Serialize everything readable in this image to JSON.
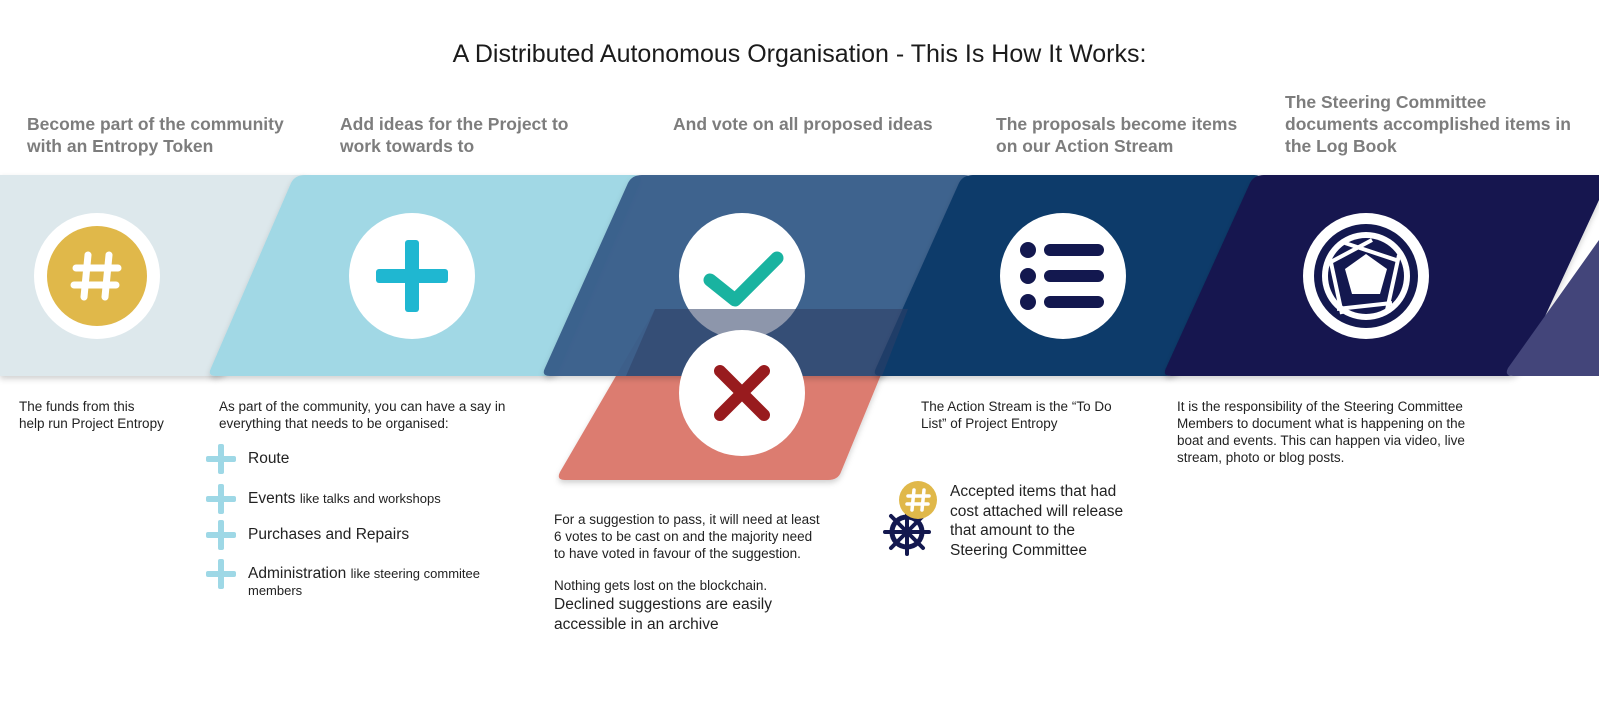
{
  "title": "A Distributed Autonomous Organisation - This Is How It Works:",
  "colors": {
    "step1": "#dde8ec",
    "step2": "#a1d8e5",
    "step3": "#3a5f8b",
    "step4": "#0c3a6b",
    "step5": "#13184f",
    "step6": "#43457a",
    "decline": "#dc7b70",
    "gold": "#e0b84a",
    "teal": "#19b3a0",
    "plus": "#1fb7d1",
    "cross": "#981b1e"
  },
  "steps": [
    {
      "heading_lines": [
        "Become part of the community",
        "with an Entropy Token"
      ],
      "icon": "hash-icon",
      "body_lines": [
        "The funds from this",
        "help run Project Entropy"
      ]
    },
    {
      "heading_lines": [
        "Add ideas for the Project to",
        "work towards to"
      ],
      "icon": "plus-icon",
      "body_lines": [
        "As part of the community, you can have a say in",
        "everything that needs to be organised:"
      ]
    },
    {
      "heading_lines": [
        "And vote on all proposed ideas"
      ],
      "icon": "checkmark-icon",
      "body_lines": [
        "For a suggestion to pass, it will need at least",
        "6 votes to be cast on and the majority need",
        "to have voted in favour of the suggestion."
      ]
    },
    {
      "heading_lines": [
        "The proposals become items",
        "on our Action Stream"
      ],
      "icon": "list-icon",
      "body_lines": [
        "The Action Stream is the “To Do",
        "List” of Project Entropy"
      ]
    },
    {
      "heading_lines": [
        "The Steering Committee",
        "documents accomplished items in",
        "the Log Book"
      ],
      "icon": "aperture-icon",
      "body_lines": [
        "It is the responsibility of the Steering Committee",
        "Members to document what is happening on the",
        "boat and events. This can happen via video, live",
        "stream, photo or blog posts."
      ]
    }
  ],
  "organise_items": [
    {
      "label": "Route",
      "sub": ""
    },
    {
      "label": "Events",
      "sub": "like talks and workshops"
    },
    {
      "label": "Purchases and Repairs",
      "sub": ""
    },
    {
      "label": "Administration",
      "sub": "like steering commitee",
      "sub2": "members"
    }
  ],
  "decline_icon": "cross-icon",
  "archive_lines": [
    "Nothing gets lost on the blockchain.",
    "Declined suggestions are easily",
    "accessible in an archive"
  ],
  "accepted_lines": [
    "Accepted items that had",
    "cost attached will release",
    "that amount to the",
    "Steering Committee"
  ],
  "accepted_icons": [
    "hash-icon",
    "ship-wheel-icon"
  ]
}
